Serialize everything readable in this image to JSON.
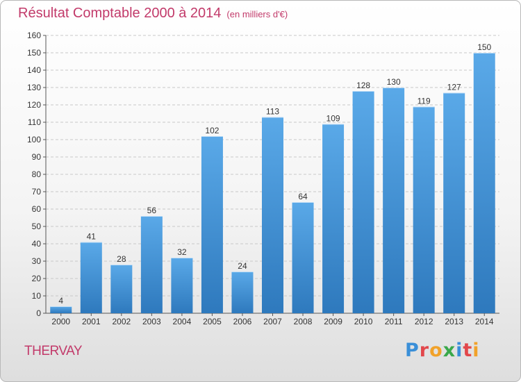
{
  "header": {
    "title": "Résultat Comptable 2000 à 2014",
    "subtitle": "(en milliers d'€)"
  },
  "footer": {
    "location": "THERVAY",
    "brand_letters": [
      {
        "ch": "P",
        "color": "#3a8fd8"
      },
      {
        "ch": "r",
        "color": "#e2474b"
      },
      {
        "ch": "o",
        "color": "#f1a22a"
      },
      {
        "ch": "x",
        "color": "#3aa84a"
      },
      {
        "ch": "i",
        "color": "#3a8fd8"
      },
      {
        "ch": "t",
        "color": "#e2474b"
      },
      {
        "ch": "i",
        "color": "#f1a22a"
      }
    ]
  },
  "chart_data": {
    "type": "bar",
    "categories": [
      "2000",
      "2001",
      "2002",
      "2003",
      "2004",
      "2005",
      "2006",
      "2007",
      "2008",
      "2009",
      "2010",
      "2011",
      "2012",
      "2013",
      "2014"
    ],
    "values": [
      4,
      41,
      28,
      56,
      32,
      102,
      24,
      113,
      64,
      109,
      128,
      130,
      119,
      127,
      150
    ],
    "ylim": [
      0,
      160
    ],
    "ytick_step": 10,
    "grid": true,
    "bar_color_top": "#5aa9e8",
    "bar_color_bottom": "#2e79bd",
    "grid_color": "#c8c8c8"
  }
}
